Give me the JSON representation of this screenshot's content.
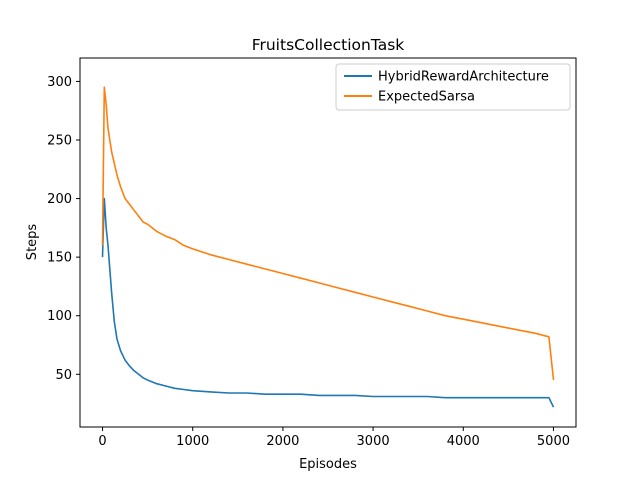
{
  "chart_data": {
    "type": "line",
    "title": "FruitsCollectionTask",
    "xlabel": "Episodes",
    "ylabel": "Steps",
    "xlim": [
      -250,
      5250
    ],
    "ylim": [
      5,
      320
    ],
    "xticks": [
      0,
      1000,
      2000,
      3000,
      4000,
      5000
    ],
    "yticks": [
      50,
      100,
      150,
      200,
      250,
      300
    ],
    "grid": false,
    "legend_position": "top-right",
    "series": [
      {
        "name": "HybridRewardArchitecture",
        "color": "#1f77b4",
        "x": [
          0,
          20,
          40,
          60,
          80,
          100,
          130,
          160,
          200,
          250,
          300,
          350,
          400,
          450,
          500,
          600,
          700,
          800,
          900,
          1000,
          1200,
          1400,
          1600,
          1800,
          2000,
          2200,
          2400,
          2600,
          2800,
          3000,
          3200,
          3400,
          3600,
          3800,
          4000,
          4200,
          4400,
          4600,
          4800,
          4950,
          5000
        ],
        "y": [
          150,
          200,
          175,
          160,
          140,
          120,
          95,
          80,
          70,
          62,
          57,
          53,
          50,
          47,
          45,
          42,
          40,
          38,
          37,
          36,
          35,
          34,
          34,
          33,
          33,
          33,
          32,
          32,
          32,
          31,
          31,
          31,
          31,
          30,
          30,
          30,
          30,
          30,
          30,
          30,
          22
        ]
      },
      {
        "name": "ExpectedSarsa",
        "color": "#ff7f0e",
        "x": [
          0,
          20,
          40,
          60,
          80,
          100,
          130,
          160,
          200,
          250,
          300,
          350,
          400,
          450,
          500,
          600,
          700,
          800,
          900,
          1000,
          1200,
          1400,
          1600,
          1800,
          2000,
          2200,
          2400,
          2600,
          2800,
          3000,
          3200,
          3400,
          3600,
          3800,
          4000,
          4200,
          4400,
          4600,
          4800,
          4950,
          5000
        ],
        "y": [
          160,
          295,
          280,
          260,
          250,
          240,
          230,
          220,
          210,
          200,
          195,
          190,
          185,
          180,
          178,
          172,
          168,
          165,
          160,
          157,
          152,
          148,
          144,
          140,
          136,
          132,
          128,
          124,
          120,
          116,
          112,
          108,
          104,
          100,
          97,
          94,
          91,
          88,
          85,
          82,
          45
        ]
      }
    ]
  }
}
